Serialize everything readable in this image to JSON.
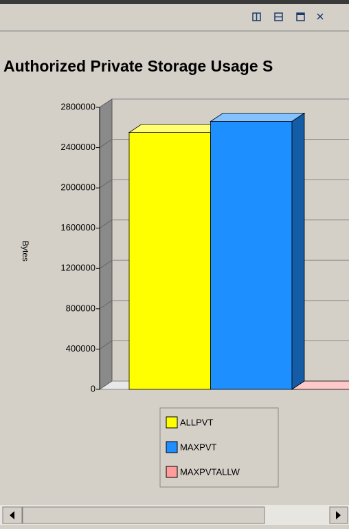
{
  "chart_data": {
    "type": "bar3d",
    "title": "Authorized Private Storage Usage S",
    "y_label": "Bytes",
    "series": [
      {
        "name": "ALLPVT",
        "color": "#ffff00",
        "values": [
          2550000
        ]
      },
      {
        "name": "MAXPVT",
        "color": "#1e8fff",
        "values": [
          2660000
        ]
      },
      {
        "name": "MAXPVTALLW",
        "color": "#ff9c9c",
        "values": [
          0
        ]
      }
    ],
    "ylim": [
      0,
      2800000
    ],
    "yticks": [
      0,
      400000,
      800000,
      1200000,
      1600000,
      2000000,
      2400000,
      2800000
    ],
    "grid": true
  }
}
